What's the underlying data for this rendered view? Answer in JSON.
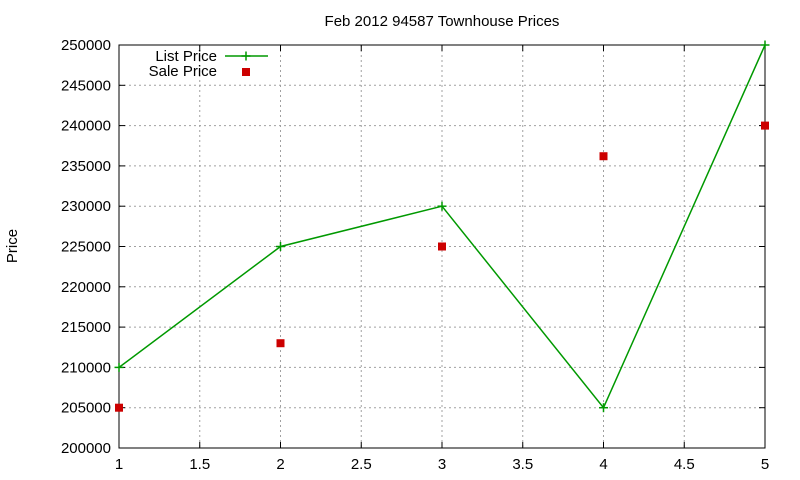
{
  "chart_data": {
    "type": "line",
    "title": "Feb 2012 94587 Townhouse Prices",
    "xlabel": "",
    "ylabel": "Price",
    "xlim": [
      1,
      5
    ],
    "ylim": [
      200000,
      250000
    ],
    "x_ticks": [
      "1",
      "1.5",
      "2",
      "2.5",
      "3",
      "3.5",
      "4",
      "4.5",
      "5"
    ],
    "y_ticks": [
      "200000",
      "205000",
      "210000",
      "215000",
      "220000",
      "225000",
      "230000",
      "235000",
      "240000",
      "245000",
      "250000"
    ],
    "grid": true,
    "legend_position": "top-left",
    "series": [
      {
        "name": "List Price",
        "style": "line+plus",
        "color": "#009900",
        "x": [
          1,
          2,
          3,
          4,
          5
        ],
        "y": [
          210000,
          225000,
          230000,
          205000,
          250000
        ]
      },
      {
        "name": "Sale Price",
        "style": "square",
        "color": "#cc0000",
        "x": [
          1,
          2,
          3,
          4,
          5
        ],
        "y": [
          205000,
          213000,
          225000,
          236200,
          240000
        ]
      }
    ]
  }
}
